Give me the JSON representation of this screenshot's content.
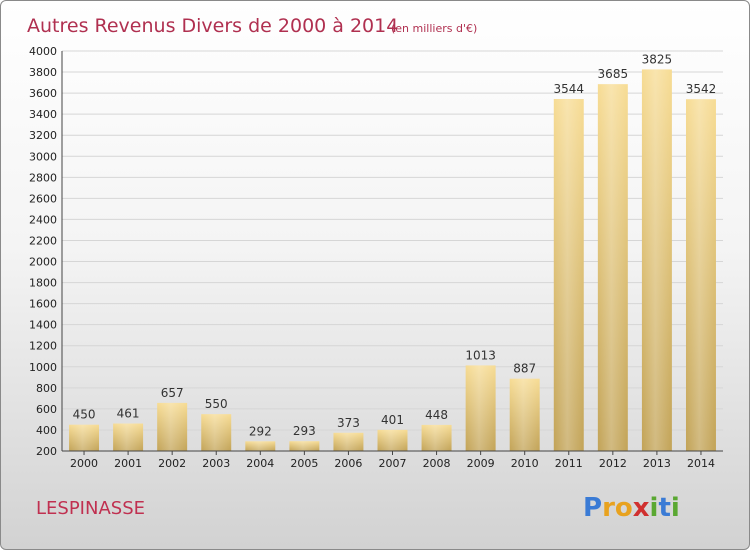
{
  "chart_data": {
    "type": "bar",
    "title": "Autres Revenus Divers de 2000 à 2014",
    "subtitle": "(en milliers d'€)",
    "categories": [
      "2000",
      "2001",
      "2002",
      "2003",
      "2004",
      "2005",
      "2006",
      "2007",
      "2008",
      "2009",
      "2010",
      "2011",
      "2012",
      "2013",
      "2014"
    ],
    "values": [
      450,
      461,
      657,
      550,
      292,
      293,
      373,
      401,
      448,
      1013,
      887,
      3544,
      3685,
      3825,
      3542
    ],
    "yticks": [
      200,
      400,
      600,
      800,
      1000,
      1200,
      1400,
      1600,
      1800,
      2000,
      2200,
      2400,
      2600,
      2800,
      3000,
      3200,
      3400,
      3600,
      3800,
      4000
    ],
    "ylim": [
      200,
      4000
    ],
    "xlabel": "",
    "ylabel": "",
    "grid": true,
    "bar_color": "#e9c96e"
  },
  "location": "LESPINASSE",
  "logo": {
    "letters": [
      "P",
      "r",
      "o",
      "x",
      "i",
      "t",
      "i"
    ],
    "colors": [
      "#3a7bd5",
      "#e8a21f",
      "#e8a21f",
      "#d0302f",
      "#5aa832",
      "#3a7bd5",
      "#5aa832"
    ]
  }
}
